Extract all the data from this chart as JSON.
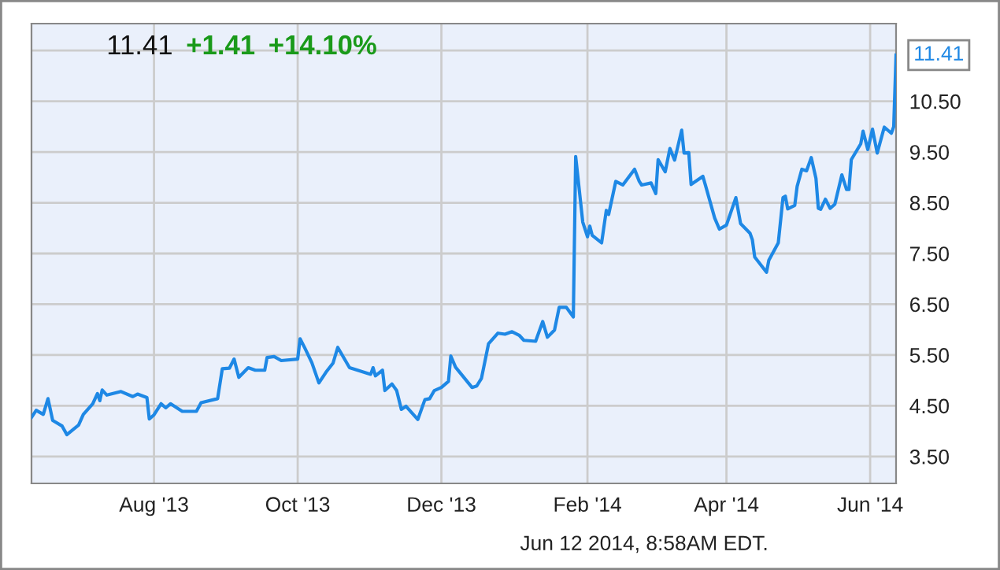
{
  "chart_data": {
    "type": "line",
    "x": [
      "2013-06-10",
      "2013-06-12",
      "2013-06-15",
      "2013-06-17",
      "2013-06-19",
      "2013-06-23",
      "2013-06-25",
      "2013-06-30",
      "2013-07-02",
      "2013-07-06",
      "2013-07-08",
      "2013-07-09",
      "2013-07-10",
      "2013-07-12",
      "2013-07-18",
      "2013-07-23",
      "2013-07-25",
      "2013-07-29",
      "2013-07-30",
      "2013-08-01",
      "2013-08-04",
      "2013-08-06",
      "2013-08-08",
      "2013-08-13",
      "2013-08-19",
      "2013-08-21",
      "2013-08-28",
      "2013-08-30",
      "2013-09-02",
      "2013-09-04",
      "2013-09-06",
      "2013-09-10",
      "2013-09-13",
      "2013-09-17",
      "2013-09-18",
      "2013-09-21",
      "2013-09-24",
      "2013-10-01",
      "2013-10-02",
      "2013-10-04",
      "2013-10-07",
      "2013-10-10",
      "2013-10-13",
      "2013-10-16",
      "2013-10-18",
      "2013-10-23",
      "2013-11-01",
      "2013-11-02",
      "2013-11-03",
      "2013-11-06",
      "2013-11-07",
      "2013-11-10",
      "2013-11-12",
      "2013-11-14",
      "2013-11-16",
      "2013-11-21",
      "2013-11-24",
      "2013-11-26",
      "2013-11-28",
      "2013-12-01",
      "2013-12-04",
      "2013-12-05",
      "2013-12-07",
      "2013-12-14",
      "2013-12-16",
      "2013-12-18",
      "2013-12-21",
      "2013-12-25",
      "2013-12-28",
      "2013-12-31",
      "2014-01-03",
      "2014-01-05",
      "2014-01-10",
      "2014-01-13",
      "2014-01-15",
      "2014-01-18",
      "2014-01-20",
      "2014-01-23",
      "2014-01-26",
      "2014-01-27",
      "2014-01-30",
      "2014-02-01",
      "2014-02-02",
      "2014-02-03",
      "2014-02-07",
      "2014-02-09",
      "2014-02-10",
      "2014-02-13",
      "2014-02-16",
      "2014-02-21",
      "2014-02-23",
      "2014-02-24",
      "2014-02-28",
      "2014-03-02",
      "2014-03-03",
      "2014-03-06",
      "2014-03-08",
      "2014-03-10",
      "2014-03-13",
      "2014-03-14",
      "2014-03-16",
      "2014-03-17",
      "2014-03-22",
      "2014-03-23",
      "2014-03-27",
      "2014-03-29",
      "2014-04-01",
      "2014-04-05",
      "2014-04-07",
      "2014-04-11",
      "2014-04-12",
      "2014-04-13",
      "2014-04-18",
      "2014-04-19",
      "2014-04-23",
      "2014-04-25",
      "2014-04-26",
      "2014-04-27",
      "2014-04-30",
      "2014-05-01",
      "2014-05-03",
      "2014-05-05",
      "2014-05-07",
      "2014-05-09",
      "2014-05-10",
      "2014-05-11",
      "2014-05-13",
      "2014-05-15",
      "2014-05-17",
      "2014-05-20",
      "2014-05-22",
      "2014-05-23",
      "2014-05-24",
      "2014-05-28",
      "2014-05-29",
      "2014-05-31",
      "2014-06-02",
      "2014-06-04",
      "2014-06-07",
      "2014-06-10",
      "2014-06-11",
      "2014-06-12"
    ],
    "series": [
      {
        "color": "#1e88e5",
        "values": [
          4.27,
          4.41,
          4.33,
          4.64,
          4.21,
          4.1,
          3.93,
          4.12,
          4.33,
          4.54,
          4.74,
          4.6,
          4.81,
          4.71,
          4.78,
          4.68,
          4.73,
          4.66,
          4.24,
          4.32,
          4.54,
          4.46,
          4.54,
          4.39,
          4.39,
          4.56,
          4.64,
          5.23,
          5.24,
          5.42,
          5.06,
          5.25,
          5.2,
          5.2,
          5.45,
          5.47,
          5.39,
          5.42,
          5.82,
          5.64,
          5.35,
          4.95,
          5.16,
          5.34,
          5.65,
          5.25,
          5.12,
          5.25,
          5.09,
          5.2,
          4.8,
          4.93,
          4.8,
          4.43,
          4.49,
          4.23,
          4.62,
          4.64,
          4.8,
          4.86,
          4.98,
          5.48,
          5.26,
          4.86,
          4.89,
          5.04,
          5.72,
          5.93,
          5.91,
          5.96,
          5.89,
          5.79,
          5.77,
          6.16,
          5.85,
          5.99,
          6.44,
          6.44,
          6.25,
          9.41,
          8.12,
          7.83,
          8.04,
          7.86,
          7.71,
          8.35,
          8.27,
          8.92,
          8.85,
          9.16,
          8.92,
          8.85,
          8.89,
          8.68,
          9.35,
          9.11,
          9.57,
          9.34,
          9.93,
          9.48,
          9.49,
          8.86,
          9.02,
          8.86,
          8.2,
          7.98,
          8.06,
          8.6,
          8.09,
          7.9,
          7.77,
          7.43,
          7.13,
          7.37,
          7.71,
          8.6,
          8.63,
          8.38,
          8.45,
          8.82,
          9.16,
          9.13,
          9.39,
          8.98,
          8.39,
          8.37,
          8.57,
          8.39,
          8.47,
          9.05,
          8.76,
          8.76,
          9.35,
          9.66,
          9.91,
          9.55,
          9.95,
          9.48,
          9.99,
          9.87,
          10.0,
          11.41
        ]
      }
    ],
    "xlim": [
      "2013-06-10",
      "2014-06-12"
    ],
    "xticks": [
      {
        "value": "2013-08-01",
        "label": "Aug '13"
      },
      {
        "value": "2013-10-01",
        "label": "Oct '13"
      },
      {
        "value": "2013-12-01",
        "label": "Dec '13"
      },
      {
        "value": "2014-02-01",
        "label": "Feb '14"
      },
      {
        "value": "2014-04-01",
        "label": "Apr '14"
      },
      {
        "value": "2014-06-01",
        "label": "Jun '14"
      }
    ],
    "ylim": [
      2.97,
      12.03
    ],
    "yticks": [
      {
        "value": 3.5,
        "label": "3.50"
      },
      {
        "value": 4.5,
        "label": "4.50"
      },
      {
        "value": 5.5,
        "label": "5.50"
      },
      {
        "value": 6.5,
        "label": "6.50"
      },
      {
        "value": 7.5,
        "label": "7.50"
      },
      {
        "value": 8.5,
        "label": "8.50"
      },
      {
        "value": 9.5,
        "label": "9.50"
      },
      {
        "value": 10.5,
        "label": "10.50"
      },
      {
        "value": 11.5,
        "label": null
      }
    ],
    "grid": true,
    "annotations": [
      "11.41",
      "+1.41",
      "+14.10%",
      {
        "text": "11.41",
        "x": "2014-06-12",
        "y": 11.41
      },
      "Jun 12 2014, 8:58AM EDT."
    ]
  }
}
